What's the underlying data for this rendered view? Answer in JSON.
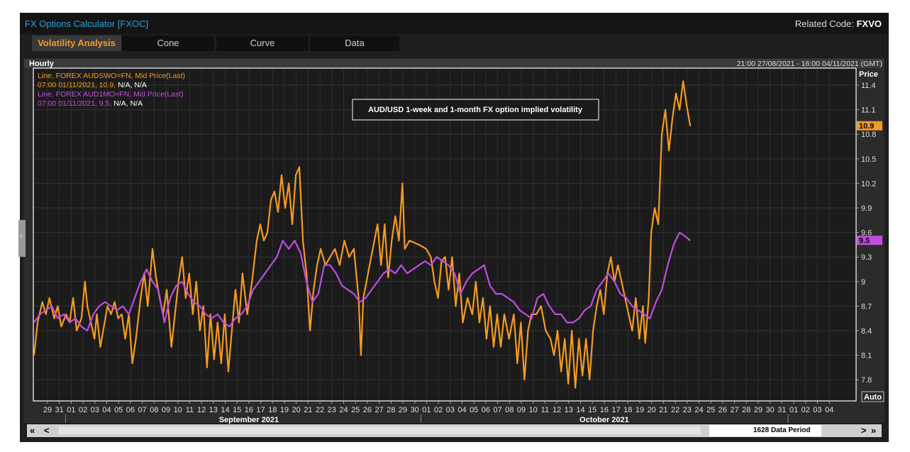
{
  "window": {
    "app_title": "FX Options Calculator [FXOC]",
    "related_prefix": "Related Code: ",
    "related_code": "FXVO"
  },
  "tabs": [
    {
      "label": "Volatility Analysis",
      "active": true
    },
    {
      "label": "Cone",
      "active": false
    },
    {
      "label": "Curve",
      "active": false
    },
    {
      "label": "Data",
      "active": false
    }
  ],
  "panel": {
    "interval": "Hourly",
    "range": "21:00 27/08/2021 - 16:00 04/11/2021 (GMT)"
  },
  "legend": [
    {
      "line1": "Line, FOREX AUDSWO=FN, Mid Price(Last)",
      "time_value": "07:00 01/11/2021, 10.9,",
      "na": " N/A, N/A",
      "color": "#f39a24"
    },
    {
      "line1": "Line, FOREX AUD1MO=FN, Mid Price(Last)",
      "time_value": "07:00 01/11/2021, 9.5,",
      "na": " N/A, N/A",
      "color": "#c04ce0"
    }
  ],
  "annotation": "AUD/USD 1-week and 1-month FX option implied volatility",
  "axis": {
    "price_label": "Price",
    "auto_label": "Auto",
    "y_ticks": [
      7.8,
      8.1,
      8.4,
      8.7,
      9,
      9.3,
      9.6,
      9.9,
      10.2,
      10.5,
      10.8,
      11.1,
      11.4
    ],
    "x_day_labels": [
      "29",
      "31",
      "01",
      "02",
      "03",
      "04",
      "05",
      "06",
      "07",
      "08",
      "09",
      "10",
      "11",
      "12",
      "13",
      "14",
      "15",
      "16",
      "17",
      "18",
      "19",
      "20",
      "21",
      "22",
      "23",
      "24",
      "25",
      "26",
      "27",
      "28",
      "29",
      "30",
      "01",
      "02",
      "03",
      "04",
      "05",
      "06",
      "07",
      "08",
      "09",
      "10",
      "11",
      "12",
      "13",
      "14",
      "15",
      "16",
      "17",
      "18",
      "19",
      "20",
      "21",
      "22",
      "23",
      "24",
      "25",
      "26",
      "27",
      "28",
      "29",
      "30",
      "31",
      "01",
      "02",
      "03",
      "04"
    ],
    "months": [
      {
        "label": "September 2021"
      },
      {
        "label": "October 2021"
      }
    ]
  },
  "scrollbar": {
    "label": "1628 Data Period",
    "first_label": "«",
    "prev_label": "<",
    "next_label": ">",
    "last_label": "»"
  },
  "chart_data": {
    "type": "line",
    "ylim": [
      7.55,
      11.6
    ],
    "x_unit": "days since 27/08/2021",
    "series": [
      {
        "name": "AUDSWO=FN",
        "color": "#f39a24",
        "last_value": "10.9",
        "points": [
          [
            0,
            8.1
          ],
          [
            0.3,
            8.5
          ],
          [
            0.7,
            8.75
          ],
          [
            1,
            8.6
          ],
          [
            1.3,
            8.8
          ],
          [
            1.7,
            8.55
          ],
          [
            2,
            8.7
          ],
          [
            2.3,
            8.45
          ],
          [
            2.7,
            8.6
          ],
          [
            3,
            8.5
          ],
          [
            3.3,
            8.8
          ],
          [
            3.6,
            8.4
          ],
          [
            4,
            8.55
          ],
          [
            4.3,
            9.0
          ],
          [
            4.5,
            8.7
          ],
          [
            4.8,
            8.5
          ],
          [
            5.1,
            8.3
          ],
          [
            5.3,
            8.6
          ],
          [
            5.6,
            8.2
          ],
          [
            5.9,
            8.45
          ],
          [
            6.2,
            8.7
          ],
          [
            6.5,
            8.6
          ],
          [
            6.8,
            8.75
          ],
          [
            7.1,
            8.55
          ],
          [
            7.4,
            8.6
          ],
          [
            7.7,
            8.3
          ],
          [
            8,
            8.6
          ],
          [
            8.3,
            8.0
          ],
          [
            8.6,
            8.3
          ],
          [
            9,
            8.8
          ],
          [
            9.3,
            9.1
          ],
          [
            9.6,
            8.7
          ],
          [
            10,
            9.4
          ],
          [
            10.3,
            9.05
          ],
          [
            10.6,
            8.8
          ],
          [
            10.9,
            8.6
          ],
          [
            11.2,
            8.9
          ],
          [
            11.6,
            8.2
          ],
          [
            11.9,
            8.6
          ],
          [
            12.2,
            9.0
          ],
          [
            12.5,
            9.3
          ],
          [
            12.8,
            8.8
          ],
          [
            13.1,
            9.1
          ],
          [
            13.4,
            8.6
          ],
          [
            13.7,
            9.0
          ],
          [
            14,
            8.4
          ],
          [
            14.3,
            8.7
          ],
          [
            14.6,
            7.95
          ],
          [
            14.9,
            8.6
          ],
          [
            15.2,
            8.05
          ],
          [
            15.5,
            8.5
          ],
          [
            15.8,
            8.0
          ],
          [
            16.1,
            8.6
          ],
          [
            16.4,
            7.9
          ],
          [
            16.7,
            8.4
          ],
          [
            17,
            8.9
          ],
          [
            17.3,
            8.5
          ],
          [
            17.6,
            9.1
          ],
          [
            18,
            8.6
          ],
          [
            18.4,
            9.0
          ],
          [
            18.8,
            9.5
          ],
          [
            19.1,
            9.7
          ],
          [
            19.4,
            9.5
          ],
          [
            19.7,
            9.6
          ],
          [
            20,
            10.0
          ],
          [
            20.3,
            10.1
          ],
          [
            20.6,
            9.85
          ],
          [
            20.9,
            10.3
          ],
          [
            21.2,
            9.9
          ],
          [
            21.5,
            10.2
          ],
          [
            21.8,
            9.7
          ],
          [
            22.1,
            10.3
          ],
          [
            22.4,
            10.4
          ],
          [
            22.7,
            9.5
          ],
          [
            23,
            9.1
          ],
          [
            23.3,
            8.4
          ],
          [
            23.6,
            8.9
          ],
          [
            23.9,
            9.2
          ],
          [
            24.2,
            9.4
          ],
          [
            24.6,
            9.2
          ],
          [
            25,
            9.3
          ],
          [
            25.4,
            9.4
          ],
          [
            25.8,
            9.2
          ],
          [
            26.2,
            9.5
          ],
          [
            26.6,
            9.3
          ],
          [
            27,
            9.4
          ],
          [
            27.4,
            8.8
          ],
          [
            27.6,
            8.1
          ],
          [
            27.8,
            8.8
          ],
          [
            28.2,
            9.1
          ],
          [
            28.6,
            9.4
          ],
          [
            29,
            9.7
          ],
          [
            29.3,
            9.2
          ],
          [
            29.6,
            9.7
          ],
          [
            29.9,
            9.05
          ],
          [
            30.2,
            9.5
          ],
          [
            30.5,
            9.8
          ],
          [
            30.8,
            9.5
          ],
          [
            31.1,
            10.2
          ],
          [
            31.3,
            9.4
          ],
          [
            31.7,
            9.5
          ],
          [
            32.5,
            9.45
          ],
          [
            33.1,
            9.4
          ],
          [
            33.5,
            9.3
          ],
          [
            33.8,
            9.0
          ],
          [
            34.1,
            8.8
          ],
          [
            34.4,
            9.25
          ],
          [
            34.7,
            9.3
          ],
          [
            35,
            8.9
          ],
          [
            35.3,
            9.3
          ],
          [
            35.6,
            8.7
          ],
          [
            35.9,
            9.1
          ],
          [
            36.2,
            8.5
          ],
          [
            36.6,
            8.8
          ],
          [
            37,
            8.6
          ],
          [
            37.3,
            9.0
          ],
          [
            37.6,
            8.5
          ],
          [
            37.9,
            8.8
          ],
          [
            38.2,
            8.3
          ],
          [
            38.5,
            8.7
          ],
          [
            38.8,
            8.2
          ],
          [
            39.1,
            8.6
          ],
          [
            39.4,
            8.2
          ],
          [
            39.7,
            8.6
          ],
          [
            40.1,
            8.3
          ],
          [
            40.5,
            8.6
          ],
          [
            40.8,
            8.0
          ],
          [
            41.1,
            8.5
          ],
          [
            41.4,
            7.8
          ],
          [
            41.7,
            8.4
          ],
          [
            42,
            8.6
          ],
          [
            42.4,
            8.6
          ],
          [
            42.8,
            8.7
          ],
          [
            43.2,
            8.4
          ],
          [
            43.6,
            8.3
          ],
          [
            43.9,
            8.1
          ],
          [
            44.2,
            8.4
          ],
          [
            44.5,
            7.9
          ],
          [
            44.8,
            8.3
          ],
          [
            45.1,
            7.75
          ],
          [
            45.4,
            8.4
          ],
          [
            45.7,
            7.7
          ],
          [
            46,
            8.3
          ],
          [
            46.3,
            7.85
          ],
          [
            46.6,
            8.3
          ],
          [
            46.9,
            7.8
          ],
          [
            47.2,
            8.4
          ],
          [
            47.5,
            8.7
          ],
          [
            47.8,
            8.9
          ],
          [
            48.1,
            8.6
          ],
          [
            48.4,
            9.1
          ],
          [
            48.7,
            9.3
          ],
          [
            49,
            9.0
          ],
          [
            49.3,
            9.2
          ],
          [
            49.6,
            9.0
          ],
          [
            49.9,
            8.8
          ],
          [
            50.2,
            8.6
          ],
          [
            50.5,
            8.4
          ],
          [
            50.8,
            8.8
          ],
          [
            51.1,
            8.3
          ],
          [
            51.4,
            8.7
          ],
          [
            51.6,
            8.25
          ],
          [
            51.9,
            8.8
          ],
          [
            52.1,
            9.6
          ],
          [
            52.4,
            9.9
          ],
          [
            52.7,
            9.7
          ],
          [
            53,
            10.8
          ],
          [
            53.3,
            11.1
          ],
          [
            53.6,
            10.6
          ],
          [
            53.9,
            11.0
          ],
          [
            54.2,
            11.3
          ],
          [
            54.5,
            11.1
          ],
          [
            54.8,
            11.45
          ],
          [
            55.1,
            11.15
          ],
          [
            55.4,
            10.9
          ]
        ]
      },
      {
        "name": "AUD1MO=FN",
        "color": "#c04ce0",
        "last_value": "9.5",
        "points": [
          [
            0,
            8.5
          ],
          [
            0.5,
            8.6
          ],
          [
            1,
            8.65
          ],
          [
            1.5,
            8.7
          ],
          [
            2,
            8.55
          ],
          [
            2.5,
            8.6
          ],
          [
            3,
            8.5
          ],
          [
            3.5,
            8.55
          ],
          [
            4,
            8.45
          ],
          [
            4.5,
            8.4
          ],
          [
            5,
            8.6
          ],
          [
            5.5,
            8.7
          ],
          [
            6,
            8.75
          ],
          [
            6.5,
            8.7
          ],
          [
            7,
            8.65
          ],
          [
            7.5,
            8.7
          ],
          [
            8,
            8.6
          ],
          [
            8.5,
            8.8
          ],
          [
            9,
            9.0
          ],
          [
            9.5,
            9.15
          ],
          [
            10,
            9.0
          ],
          [
            10.5,
            8.9
          ],
          [
            11,
            8.5
          ],
          [
            11.5,
            8.8
          ],
          [
            12,
            8.95
          ],
          [
            12.5,
            9.0
          ],
          [
            13,
            8.85
          ],
          [
            13.5,
            8.75
          ],
          [
            14,
            8.7
          ],
          [
            14.5,
            8.6
          ],
          [
            15,
            8.55
          ],
          [
            15.5,
            8.6
          ],
          [
            16,
            8.5
          ],
          [
            16.5,
            8.45
          ],
          [
            17,
            8.55
          ],
          [
            17.5,
            8.6
          ],
          [
            18,
            8.7
          ],
          [
            18.5,
            8.9
          ],
          [
            19,
            9.0
          ],
          [
            19.5,
            9.1
          ],
          [
            20,
            9.2
          ],
          [
            20.5,
            9.3
          ],
          [
            21,
            9.5
          ],
          [
            21.5,
            9.4
          ],
          [
            22,
            9.5
          ],
          [
            22.5,
            9.35
          ],
          [
            23,
            9.0
          ],
          [
            23.5,
            8.75
          ],
          [
            24,
            8.85
          ],
          [
            24.5,
            9.2
          ],
          [
            25,
            9.2
          ],
          [
            25.5,
            9.1
          ],
          [
            26,
            8.95
          ],
          [
            26.5,
            8.9
          ],
          [
            27,
            8.85
          ],
          [
            27.5,
            8.75
          ],
          [
            28,
            8.8
          ],
          [
            28.5,
            8.9
          ],
          [
            29,
            9.0
          ],
          [
            29.5,
            9.1
          ],
          [
            30,
            9.15
          ],
          [
            30.5,
            9.1
          ],
          [
            31,
            9.2
          ],
          [
            31.5,
            9.1
          ],
          [
            32,
            9.15
          ],
          [
            32.5,
            9.2
          ],
          [
            33,
            9.25
          ],
          [
            33.5,
            9.2
          ],
          [
            34,
            9.3
          ],
          [
            34.5,
            9.25
          ],
          [
            35,
            9.2
          ],
          [
            35.5,
            9.1
          ],
          [
            36,
            8.85
          ],
          [
            36.5,
            9.0
          ],
          [
            37,
            9.1
          ],
          [
            37.5,
            9.15
          ],
          [
            38,
            9.2
          ],
          [
            38.5,
            8.95
          ],
          [
            39,
            8.85
          ],
          [
            39.5,
            8.85
          ],
          [
            40,
            8.8
          ],
          [
            40.5,
            8.75
          ],
          [
            41,
            8.65
          ],
          [
            41.5,
            8.6
          ],
          [
            42,
            8.55
          ],
          [
            42.5,
            8.8
          ],
          [
            43,
            8.85
          ],
          [
            43.5,
            8.7
          ],
          [
            44,
            8.6
          ],
          [
            44.5,
            8.6
          ],
          [
            45,
            8.5
          ],
          [
            45.5,
            8.5
          ],
          [
            46,
            8.55
          ],
          [
            46.5,
            8.65
          ],
          [
            47,
            8.7
          ],
          [
            47.5,
            8.9
          ],
          [
            48,
            9.0
          ],
          [
            48.5,
            9.1
          ],
          [
            49,
            9.0
          ],
          [
            49.5,
            8.85
          ],
          [
            50,
            8.8
          ],
          [
            50.5,
            8.7
          ],
          [
            51,
            8.65
          ],
          [
            51.5,
            8.6
          ],
          [
            52,
            8.55
          ],
          [
            52.5,
            8.75
          ],
          [
            53,
            8.9
          ],
          [
            53.5,
            9.2
          ],
          [
            54,
            9.45
          ],
          [
            54.5,
            9.6
          ],
          [
            55,
            9.55
          ],
          [
            55.4,
            9.5
          ]
        ]
      }
    ]
  }
}
